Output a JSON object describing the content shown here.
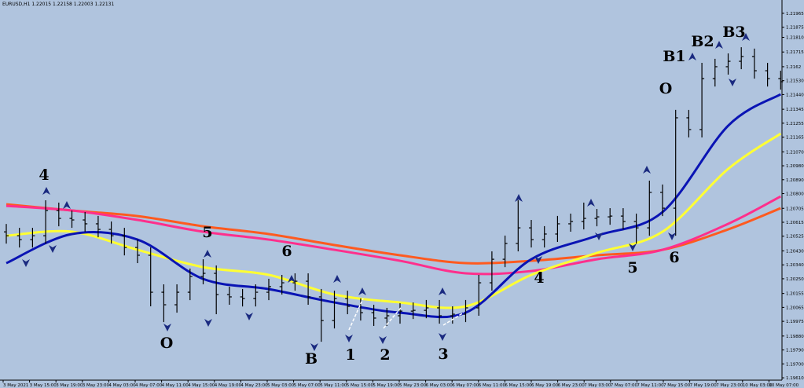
{
  "chart_data": {
    "type": "ohlc",
    "title": "EURUSD,H1  1.22015 1.22158 1.22003 1.22131",
    "ylim": [
      1.19595,
      1.22051
    ],
    "yticks": [
      1.21965,
      1.21875,
      {
        "value": 1.2181,
        "label": "1.21810"
      },
      1.21715,
      1.2162,
      {
        "value": 1.2153,
        "label": "1.21530"
      },
      {
        "value": 1.2144,
        "label": "1.21440"
      },
      1.21345,
      1.21255,
      1.21165,
      {
        "value": 1.2107,
        "label": "1.21070"
      },
      {
        "value": 1.2098,
        "label": "1.20980"
      },
      {
        "value": 1.2089,
        "label": "1.20890"
      },
      {
        "value": 1.208,
        "label": "1.20800"
      },
      1.20705,
      1.20615,
      1.20525,
      {
        "value": 1.2043,
        "label": "1.20430"
      },
      {
        "value": 1.2034,
        "label": "1.20340"
      },
      {
        "value": 1.2025,
        "label": "1.20250"
      },
      1.20155,
      1.20065,
      1.19975,
      {
        "value": 1.1988,
        "label": "1.19880"
      },
      {
        "value": 1.1979,
        "label": "1.19790"
      },
      {
        "value": 1.197,
        "label": "1.19700"
      },
      {
        "value": 1.1961,
        "label": "1.19610"
      }
    ],
    "x_labels": [
      "3 May 2021",
      "3 May 15:00",
      "3 May 19:00",
      "3 May 23:00",
      "4 May 03:00",
      "4 May 07:00",
      "4 May 11:00",
      "4 May 15:00",
      "4 May 19:00",
      "4 May 23:00",
      "5 May 03:00",
      "5 May 07:00",
      "5 May 11:00",
      "5 May 15:00",
      "5 May 19:00",
      "5 May 23:00",
      "6 May 03:00",
      "6 May 07:00",
      "6 May 11:00",
      "6 May 15:00",
      "6 May 19:00",
      "6 May 23:00",
      "7 May 03:00",
      "7 May 07:00",
      "7 May 11:00",
      "7 May 15:00",
      "7 May 19:00",
      "7 May 23:00",
      "10 May 03:00",
      "10 May 07:00"
    ],
    "bar_color": "#000000",
    "open": [
      1.20553,
      1.20528,
      1.20503,
      1.20528,
      1.20691,
      1.2064,
      1.2063,
      1.20605,
      1.20569,
      1.20528,
      1.20452,
      1.20402,
      1.20163,
      1.20082,
      1.20163,
      1.20265,
      1.20285,
      1.20148,
      1.20133,
      1.20122,
      1.20163,
      1.20199,
      1.20224,
      1.20234,
      1.20133,
      1.1998,
      1.20122,
      1.20072,
      1.20031,
      1.19996,
      1.20011,
      1.20041,
      1.20046,
      1.20062,
      1.20011,
      1.20021,
      1.20062,
      1.20224,
      1.20376,
      1.20478,
      1.20579,
      1.20503,
      1.20539,
      1.20605,
      1.2062,
      1.2064,
      1.2065,
      1.20655,
      1.2062,
      1.20579,
      1.20808,
      1.20706,
      1.2129,
      1.21214,
      1.21543,
      1.2162,
      1.21655,
      1.21686,
      1.21594,
      1.21543
    ],
    "high": [
      1.20604,
      1.20579,
      1.20579,
      1.20757,
      1.20742,
      1.20691,
      1.20681,
      1.20656,
      1.2062,
      1.20579,
      1.20503,
      1.20453,
      1.20214,
      1.20214,
      1.20316,
      1.20376,
      1.20336,
      1.20199,
      1.20184,
      1.20214,
      1.2025,
      1.20275,
      1.20285,
      1.20285,
      1.20184,
      1.20173,
      1.20173,
      1.20123,
      1.20082,
      1.20062,
      1.20092,
      1.20097,
      1.20113,
      1.20113,
      1.20072,
      1.20113,
      1.20275,
      1.20427,
      1.20529,
      1.20757,
      1.2063,
      1.2059,
      1.20656,
      1.20671,
      1.20742,
      1.20701,
      1.20706,
      1.20706,
      1.20671,
      1.20884,
      1.20859,
      1.21341,
      1.21341,
      1.21645,
      1.21671,
      1.21706,
      1.21746,
      1.21737,
      1.21645,
      1.21594
    ],
    "low": [
      1.20477,
      1.20452,
      1.20452,
      1.20477,
      1.20589,
      1.20579,
      1.20554,
      1.20518,
      1.20477,
      1.20401,
      1.20351,
      1.20072,
      1.1997,
      1.20031,
      1.20112,
      1.20214,
      1.20021,
      1.20082,
      1.20071,
      1.20071,
      1.20112,
      1.20148,
      1.20173,
      1.20082,
      1.19843,
      1.19929,
      1.20021,
      1.1998,
      1.19945,
      1.19945,
      1.1996,
      1.1999,
      1.19995,
      1.1996,
      1.1996,
      1.1997,
      1.20011,
      1.20173,
      1.20325,
      1.20427,
      1.20452,
      1.20452,
      1.20488,
      1.20554,
      1.20569,
      1.20589,
      1.20599,
      1.20569,
      1.20478,
      1.20528,
      1.20655,
      1.20528,
      1.21163,
      1.21163,
      1.21492,
      1.21569,
      1.21604,
      1.21543,
      1.21492,
      1.21472
    ],
    "close": [
      1.20528,
      1.20503,
      1.20528,
      1.20691,
      1.2064,
      1.2063,
      1.20605,
      1.20569,
      1.20528,
      1.20452,
      1.20402,
      1.20163,
      1.20082,
      1.20163,
      1.20265,
      1.20285,
      1.20148,
      1.20133,
      1.20122,
      1.20163,
      1.20199,
      1.20224,
      1.20234,
      1.20133,
      1.1998,
      1.20122,
      1.20072,
      1.20031,
      1.19996,
      1.20011,
      1.20041,
      1.20046,
      1.20062,
      1.20011,
      1.20021,
      1.20062,
      1.20224,
      1.20376,
      1.20478,
      1.20579,
      1.20503,
      1.20539,
      1.20605,
      1.2062,
      1.2064,
      1.2065,
      1.20655,
      1.2062,
      1.20579,
      1.20808,
      1.20706,
      1.2129,
      1.21214,
      1.21543,
      1.2162,
      1.21655,
      1.21686,
      1.21594,
      1.21543,
      1.21523
    ],
    "ma_index": [
      0,
      5,
      10,
      15,
      20,
      25,
      30,
      35,
      40,
      45,
      50,
      55,
      59
    ],
    "series": [
      {
        "color": "#ff5a1f",
        "values": [
          1.20731,
          1.20691,
          1.20655,
          1.20589,
          1.20539,
          1.20468,
          1.20402,
          1.20351,
          1.20366,
          1.20402,
          1.20437,
          1.20569,
          1.20706
        ]
      },
      {
        "color": "#ff2f8c",
        "values": [
          1.20721,
          1.20691,
          1.2063,
          1.20554,
          1.20503,
          1.20437,
          1.20366,
          1.20285,
          1.203,
          1.20376,
          1.20437,
          1.20605,
          1.20782
        ]
      },
      {
        "color": "#ffff33",
        "values": [
          1.20528,
          1.20554,
          1.20437,
          1.20325,
          1.20275,
          1.20148,
          1.20097,
          1.20072,
          1.20275,
          1.20417,
          1.20554,
          1.2096,
          1.21188
        ]
      },
      {
        "color": "#0a14b4",
        "values": [
          1.20351,
          1.20539,
          1.20503,
          1.20249,
          1.20183,
          1.20097,
          1.20031,
          1.20031,
          1.20376,
          1.20528,
          1.20681,
          1.21239,
          1.21442
        ]
      }
    ],
    "annotations": [
      "4",
      "5",
      "6",
      "O",
      "B",
      "1",
      "2",
      "3",
      "4",
      "5",
      "6",
      "O",
      "B1",
      "B2",
      "B3"
    ]
  }
}
